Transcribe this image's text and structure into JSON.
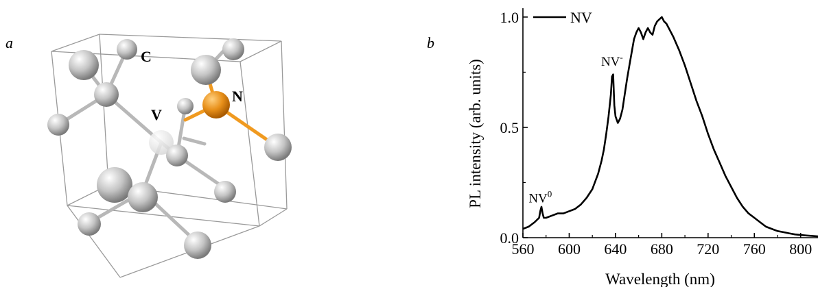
{
  "panels": {
    "a_label": "a",
    "b_label": "b"
  },
  "structure": {
    "labels": {
      "carbon": "C",
      "vacancy": "V",
      "nitrogen": "N"
    },
    "colors": {
      "carbon": "#c8c8c8",
      "nitrogen": "#e8901a",
      "vacancy": "#f2f2f2",
      "bond": "#b8b8b8",
      "nbond": "#f09a20",
      "cell": "#9a9a9a"
    }
  },
  "chart_data": {
    "type": "line",
    "xlabel": "Wavelength (nm)",
    "ylabel": "PL intensity (arb. units)",
    "xlim": [
      560,
      815
    ],
    "ylim": [
      0.0,
      1.04
    ],
    "xticks": [
      560,
      600,
      640,
      680,
      720,
      760,
      800
    ],
    "xtick_labels": [
      "560",
      "600",
      "640",
      "680",
      "720",
      "760",
      "800"
    ],
    "yticks": [
      0.0,
      0.5,
      1.0
    ],
    "ytick_labels": [
      "0.0",
      "0.5",
      "1.0"
    ],
    "legend": {
      "label": "NV",
      "position": "top-left"
    },
    "annotations": [
      {
        "text": "NV",
        "sup": "0",
        "x": 575,
        "y": 0.16
      },
      {
        "text": "NV",
        "sup": "-",
        "x": 637,
        "y": 0.78
      }
    ],
    "series": [
      {
        "name": "NV",
        "color": "#000000",
        "x": [
          560,
          565,
          570,
          574,
          575,
          576,
          577,
          578,
          580,
          585,
          590,
          595,
          600,
          605,
          610,
          615,
          620,
          625,
          628,
          630,
          632,
          634,
          636,
          637,
          638,
          639,
          640,
          642,
          644,
          646,
          648,
          650,
          652,
          654,
          656,
          658,
          660,
          662,
          664,
          666,
          668,
          670,
          672,
          674,
          676,
          678,
          680,
          682,
          684,
          686,
          690,
          695,
          700,
          705,
          710,
          715,
          720,
          725,
          730,
          735,
          740,
          745,
          750,
          755,
          760,
          765,
          770,
          775,
          780,
          785,
          790,
          795,
          800,
          805,
          810,
          815
        ],
        "y": [
          0.04,
          0.05,
          0.07,
          0.09,
          0.12,
          0.14,
          0.11,
          0.09,
          0.09,
          0.1,
          0.11,
          0.11,
          0.12,
          0.13,
          0.15,
          0.18,
          0.22,
          0.29,
          0.35,
          0.4,
          0.47,
          0.55,
          0.65,
          0.73,
          0.74,
          0.6,
          0.55,
          0.52,
          0.54,
          0.58,
          0.65,
          0.72,
          0.78,
          0.84,
          0.9,
          0.93,
          0.95,
          0.93,
          0.9,
          0.93,
          0.95,
          0.93,
          0.92,
          0.96,
          0.98,
          0.99,
          1.0,
          0.98,
          0.97,
          0.95,
          0.91,
          0.85,
          0.78,
          0.7,
          0.62,
          0.55,
          0.47,
          0.4,
          0.34,
          0.28,
          0.23,
          0.18,
          0.14,
          0.11,
          0.09,
          0.07,
          0.05,
          0.04,
          0.03,
          0.025,
          0.02,
          0.015,
          0.012,
          0.01,
          0.008,
          0.006
        ]
      }
    ]
  }
}
